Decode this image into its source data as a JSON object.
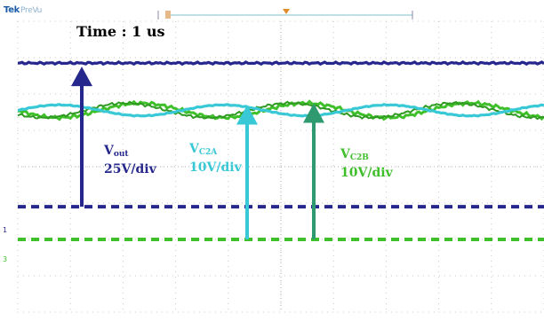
{
  "header": {
    "brand": "Tek",
    "status": "PreVu"
  },
  "annotations": {
    "time": "Time : 1 us",
    "vout": {
      "symbol": "V",
      "sub": "out",
      "scale": "25V/div",
      "color": "#25278c"
    },
    "vc2a": {
      "symbol": "V",
      "sub": "C2A",
      "scale": "10V/div",
      "color": "#38c8d6"
    },
    "vc2b": {
      "symbol": "V",
      "sub": "C2B",
      "scale": "10V/div",
      "color": "#3fbf2a"
    }
  },
  "markers": {
    "ch1": "1",
    "ch3": "3"
  },
  "chart_data": {
    "type": "line",
    "x_divisions": 10,
    "y_divisions": 8,
    "grid": true,
    "series": [
      {
        "name": "Vout",
        "color": "#25278c",
        "ground_div": 2.9,
        "level_div": 6.85,
        "ripple_div": 0.03,
        "cycles": 0
      },
      {
        "name": "VC2A",
        "color": "#38c8d6",
        "ground_div": 2.0,
        "level_div": 5.55,
        "ripple_div": 0.15,
        "cycles": 3.2
      },
      {
        "name": "VC2B",
        "color": "#3fbf2a",
        "ground_div": 2.0,
        "level_div": 5.55,
        "ripple_div": 0.2,
        "cycles": 3.2
      }
    ]
  }
}
